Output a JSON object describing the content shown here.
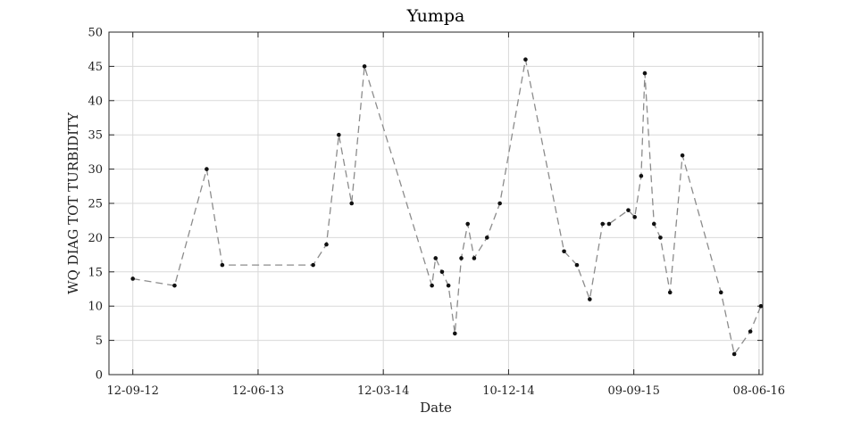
{
  "chart_data": {
    "type": "line",
    "title": "Yumpa",
    "xlabel": "Date",
    "ylabel": "WQ DIAG TOT TURBIDITY",
    "xlim": [
      "2012-07-22",
      "2016-06-16"
    ],
    "ylim": [
      0,
      50
    ],
    "yticks": [
      0,
      5,
      10,
      15,
      20,
      25,
      30,
      35,
      40,
      45,
      50
    ],
    "xticks": [
      {
        "date": "2012-09-12",
        "label": "12-09-12"
      },
      {
        "date": "2013-06-12",
        "label": "12-06-13"
      },
      {
        "date": "2014-03-12",
        "label": "12-03-14"
      },
      {
        "date": "2014-12-10",
        "label": "10-12-14"
      },
      {
        "date": "2015-09-09",
        "label": "09-09-15"
      },
      {
        "date": "2016-06-08",
        "label": "08-06-16"
      }
    ],
    "grid": true,
    "series": [
      {
        "line_color": "#8c8c8c",
        "marker_color": "#111111",
        "x": [
          "2012-09-12",
          "2012-12-12",
          "2013-02-20",
          "2013-03-26",
          "2013-10-10",
          "2013-11-08",
          "2013-12-05",
          "2014-01-02",
          "2014-01-30",
          "2014-06-26",
          "2014-07-04",
          "2014-07-18",
          "2014-08-01",
          "2014-08-15",
          "2014-08-29",
          "2014-09-12",
          "2014-09-26",
          "2014-10-24",
          "2014-11-21",
          "2015-01-16",
          "2015-04-10",
          "2015-05-08",
          "2015-06-05",
          "2015-07-03",
          "2015-07-17",
          "2015-08-28",
          "2015-09-11",
          "2015-09-25",
          "2015-10-03",
          "2015-10-23",
          "2015-11-06",
          "2015-11-27",
          "2015-12-24",
          "2016-03-17",
          "2016-04-15",
          "2016-05-20",
          "2016-06-12"
        ],
        "y": [
          14,
          13,
          30,
          16,
          16,
          19,
          35,
          25,
          45,
          13,
          17,
          15,
          13,
          6,
          17,
          22,
          17,
          20,
          25,
          46,
          18,
          16,
          11,
          22,
          22,
          24,
          23,
          29,
          44,
          22,
          20,
          12,
          32,
          12,
          3,
          6.3,
          10
        ]
      }
    ]
  }
}
